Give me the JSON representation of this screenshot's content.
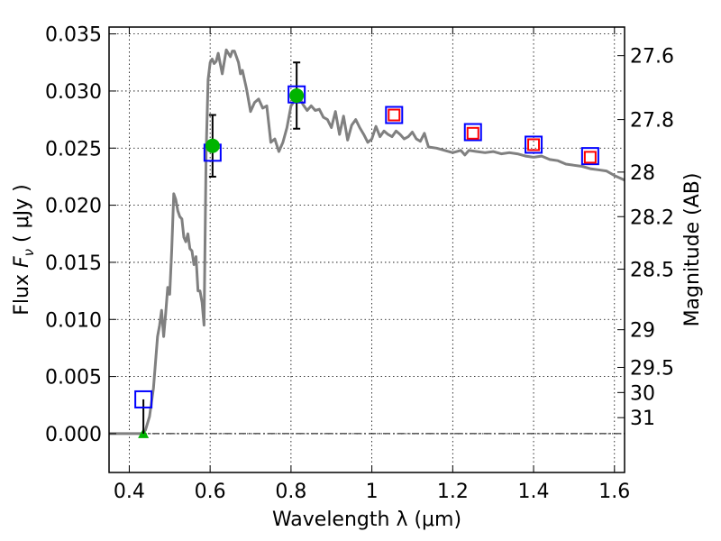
{
  "chart_data": {
    "type": "scatter",
    "xlabel": "Wavelength  λ (μm)",
    "ylabel": "Flux  F_ν  ( μJy )",
    "ylabel_right": "Magnitude (AB)",
    "xlim": [
      0.35,
      1.625
    ],
    "ylim": [
      -0.0034,
      0.0356
    ],
    "grid": true,
    "x_ticks": [
      0.4,
      0.6,
      0.8,
      1.0,
      1.2,
      1.4,
      1.6
    ],
    "x_tick_labels": [
      "0.4",
      "0.6",
      "0.8",
      "1",
      "1.2",
      "1.4",
      "1.6"
    ],
    "y_ticks": [
      0.0,
      0.005,
      0.01,
      0.015,
      0.02,
      0.025,
      0.03,
      0.035
    ],
    "y_tick_labels": [
      "0.000",
      "0.005",
      "0.010",
      "0.015",
      "0.020",
      "0.025",
      "0.030",
      "0.035"
    ],
    "right_ticks": [
      {
        "label": "27.6",
        "flux": 0.0331
      },
      {
        "label": "27.8",
        "flux": 0.0275
      },
      {
        "label": "28",
        "flux": 0.0229
      },
      {
        "label": "28.2",
        "flux": 0.019
      },
      {
        "label": "28.5",
        "flux": 0.0144
      },
      {
        "label": "29",
        "flux": 0.0091
      },
      {
        "label": "29.5",
        "flux": 0.0058
      },
      {
        "label": "30",
        "flux": 0.0036
      },
      {
        "label": "31",
        "flux": 0.0014
      }
    ],
    "series": [
      {
        "name": "model SED",
        "kind": "line",
        "color": "#808080",
        "x": [
          0.35,
          0.43,
          0.44,
          0.45,
          0.46,
          0.47,
          0.475,
          0.48,
          0.485,
          0.49,
          0.495,
          0.5,
          0.505,
          0.51,
          0.515,
          0.52,
          0.525,
          0.53,
          0.535,
          0.54,
          0.545,
          0.55,
          0.555,
          0.56,
          0.565,
          0.57,
          0.575,
          0.58,
          0.585,
          0.59,
          0.595,
          0.6,
          0.605,
          0.61,
          0.615,
          0.62,
          0.63,
          0.64,
          0.65,
          0.655,
          0.66,
          0.67,
          0.675,
          0.68,
          0.69,
          0.7,
          0.71,
          0.72,
          0.73,
          0.74,
          0.75,
          0.76,
          0.77,
          0.78,
          0.79,
          0.8,
          0.81,
          0.82,
          0.83,
          0.84,
          0.85,
          0.86,
          0.87,
          0.88,
          0.89,
          0.9,
          0.91,
          0.92,
          0.93,
          0.94,
          0.95,
          0.96,
          0.97,
          0.98,
          0.99,
          1.0,
          1.01,
          1.02,
          1.03,
          1.04,
          1.05,
          1.06,
          1.07,
          1.08,
          1.09,
          1.1,
          1.11,
          1.12,
          1.13,
          1.14,
          1.16,
          1.18,
          1.2,
          1.22,
          1.23,
          1.24,
          1.26,
          1.28,
          1.3,
          1.32,
          1.34,
          1.36,
          1.38,
          1.4,
          1.42,
          1.44,
          1.46,
          1.48,
          1.5,
          1.52,
          1.54,
          1.56,
          1.58,
          1.6,
          1.625
        ],
        "y": [
          0.0,
          0.0,
          0.0003,
          0.0015,
          0.004,
          0.0085,
          0.0095,
          0.0108,
          0.0085,
          0.0105,
          0.0128,
          0.0122,
          0.016,
          0.021,
          0.0205,
          0.0195,
          0.019,
          0.0188,
          0.0172,
          0.0168,
          0.0175,
          0.0162,
          0.016,
          0.0148,
          0.0155,
          0.0125,
          0.0125,
          0.0115,
          0.0095,
          0.0245,
          0.031,
          0.0325,
          0.0328,
          0.0324,
          0.0326,
          0.0333,
          0.0315,
          0.0336,
          0.033,
          0.0335,
          0.0335,
          0.0325,
          0.0315,
          0.0318,
          0.0302,
          0.0282,
          0.029,
          0.0293,
          0.0285,
          0.0287,
          0.0255,
          0.0258,
          0.0247,
          0.0255,
          0.0268,
          0.0287,
          0.0292,
          0.0295,
          0.0288,
          0.0283,
          0.0287,
          0.0283,
          0.0284,
          0.0277,
          0.0275,
          0.0268,
          0.0282,
          0.0262,
          0.0278,
          0.0257,
          0.027,
          0.0275,
          0.0268,
          0.0262,
          0.0255,
          0.0258,
          0.0269,
          0.026,
          0.0265,
          0.0262,
          0.026,
          0.0265,
          0.0262,
          0.0258,
          0.026,
          0.0264,
          0.0258,
          0.0256,
          0.0263,
          0.0251,
          0.025,
          0.0248,
          0.0246,
          0.0248,
          0.0244,
          0.0248,
          0.0247,
          0.0246,
          0.0247,
          0.0245,
          0.0246,
          0.0245,
          0.0243,
          0.0242,
          0.0243,
          0.024,
          0.0239,
          0.0236,
          0.0235,
          0.0234,
          0.0232,
          0.0231,
          0.023,
          0.0226,
          0.0222
        ]
      },
      {
        "name": "photometry detections",
        "kind": "circle",
        "color": "#00b400",
        "x": [
          0.606,
          0.814
        ],
        "y": [
          0.0252,
          0.0296
        ],
        "err": [
          0.0027,
          0.0029
        ]
      },
      {
        "name": "upper limit",
        "kind": "triangle",
        "color": "#00b400",
        "x": [
          0.435
        ],
        "y": [
          0.0
        ]
      },
      {
        "name": "model magnitudes",
        "kind": "square-blue",
        "color": "#0000ff",
        "x": [
          0.435,
          0.606,
          0.814,
          1.055,
          1.25,
          1.4,
          1.54
        ],
        "y": [
          0.003,
          0.0246,
          0.0297,
          0.0279,
          0.0264,
          0.0253,
          0.0243
        ]
      },
      {
        "name": "filter points",
        "kind": "square-red",
        "color": "#ff0000",
        "x": [
          1.055,
          1.25,
          1.4,
          1.54
        ],
        "y": [
          0.0279,
          0.0263,
          0.0253,
          0.0242
        ]
      }
    ]
  }
}
